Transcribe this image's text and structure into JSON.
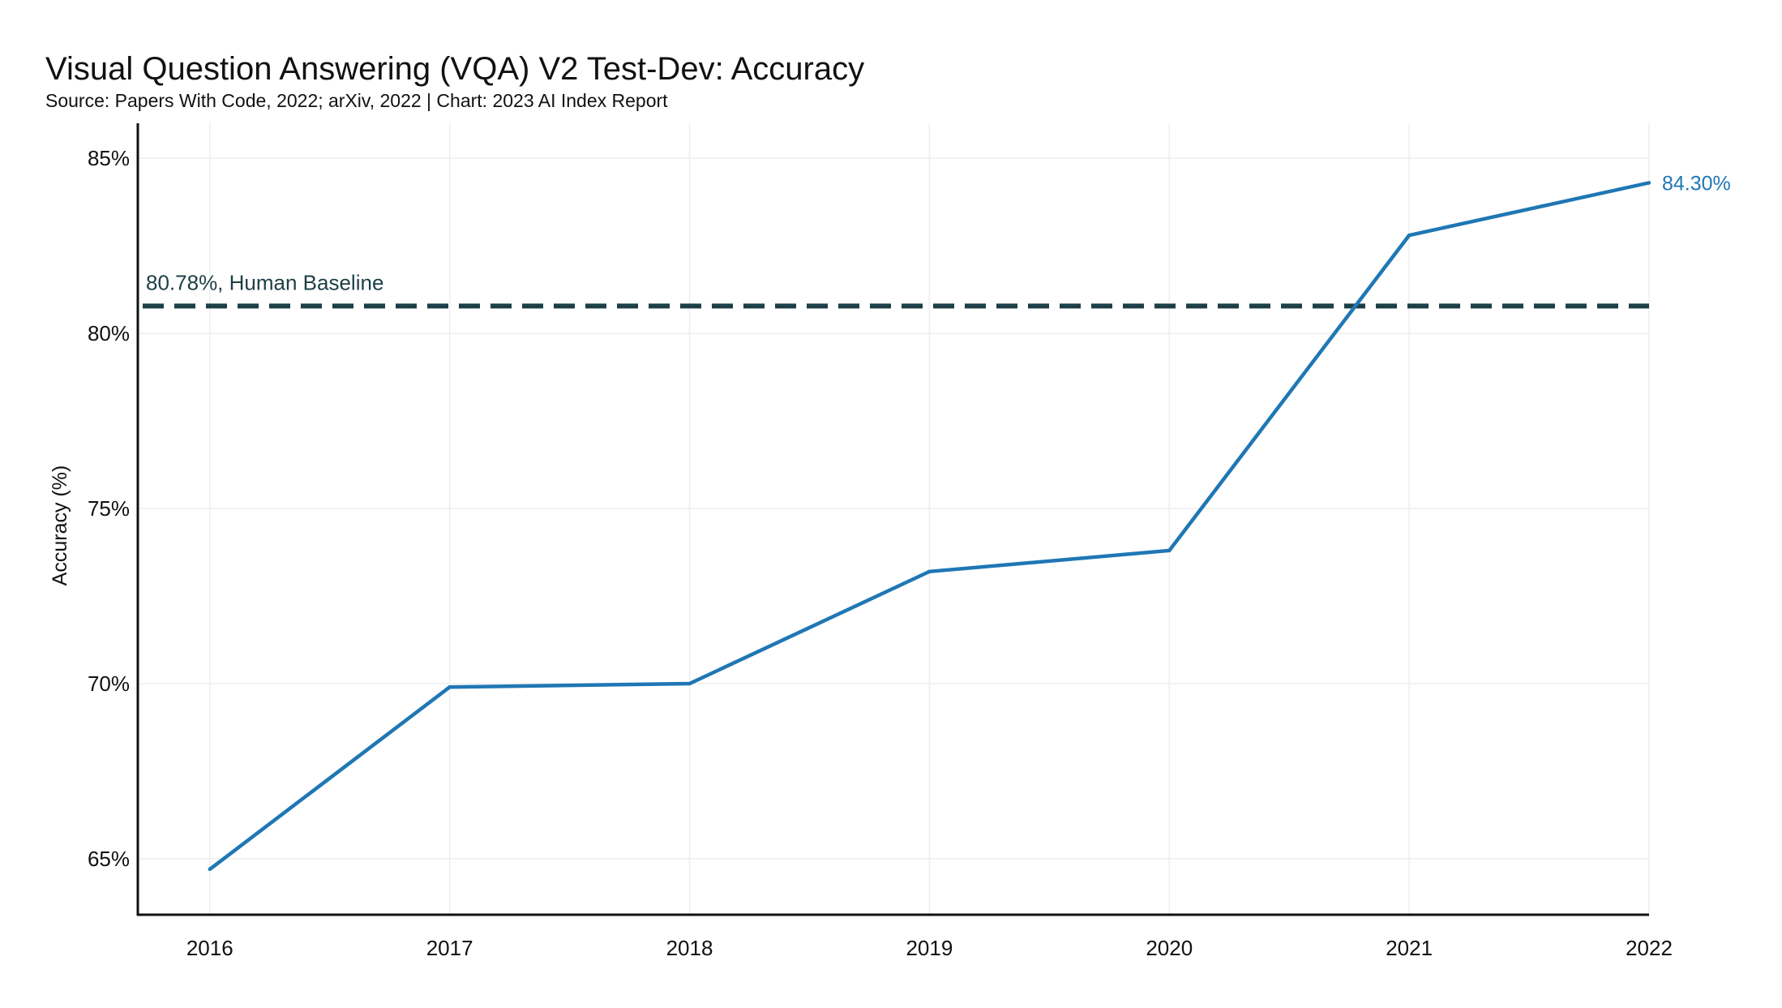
{
  "chart_data": {
    "type": "line",
    "title": "Visual Question Answering (VQA) V2 Test-Dev: Accuracy",
    "subtitle": "Source: Papers With Code, 2022; arXiv, 2022 | Chart: 2023 AI Index Report",
    "xlabel": "",
    "ylabel": "Accuracy (%)",
    "x": [
      2016,
      2017,
      2018,
      2019,
      2020,
      2021,
      2022
    ],
    "xticks": [
      "2016",
      "2017",
      "2018",
      "2019",
      "2020",
      "2021",
      "2022"
    ],
    "series": [
      {
        "values": [
          64.7,
          69.9,
          70.0,
          73.2,
          73.8,
          82.8,
          84.3
        ],
        "color": "#1f77b4",
        "end_label": "84.30%"
      }
    ],
    "reference_line": {
      "value": 80.78,
      "label": "80.78%, Human Baseline",
      "color": "#1c3f47",
      "style": "dashed"
    },
    "yticks": [
      65,
      70,
      75,
      80,
      85
    ],
    "ytick_labels": [
      "65%",
      "70%",
      "75%",
      "80%",
      "85%"
    ],
    "ylim": [
      63.4,
      86.0
    ],
    "xlim": [
      2015.7,
      2022.0
    ],
    "grid": true,
    "legend": "none"
  }
}
